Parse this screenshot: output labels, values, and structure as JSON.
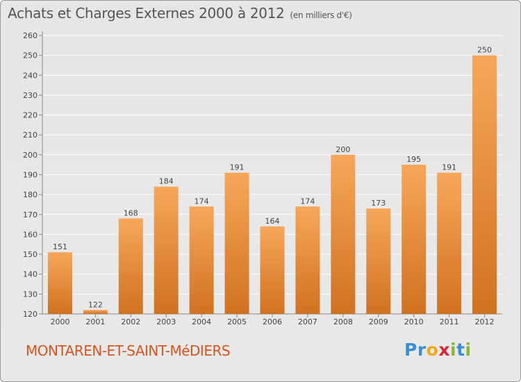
{
  "title": "Achats et Charges Externes 2000 à 2012",
  "subtitle": "(en milliers d'€)",
  "commune": "MONTAREN-ET-SAINT-MéDIERS",
  "logo": {
    "letters": [
      "P",
      "r",
      "o",
      "x",
      "i",
      "t",
      "i"
    ],
    "colors": [
      "#3a8fd6",
      "#3a8fd6",
      "#f2a81d",
      "#d9263b",
      "#8ab832",
      "#3a8fd6",
      "#8ab832"
    ]
  },
  "colors": {
    "bar_top": "#f7a75a",
    "bar_bottom": "#d07220",
    "grid": "#ffffff",
    "text": "#444444"
  },
  "chart_data": {
    "type": "bar",
    "title": "Achats et Charges Externes 2000 à 2012",
    "subtitle": "(en milliers d'€)",
    "categories": [
      "2000",
      "2001",
      "2002",
      "2003",
      "2004",
      "2005",
      "2006",
      "2007",
      "2008",
      "2009",
      "2010",
      "2011",
      "2012"
    ],
    "values": [
      151,
      122,
      168,
      184,
      174,
      191,
      164,
      174,
      200,
      173,
      195,
      191,
      250
    ],
    "ylim": [
      120,
      260
    ],
    "yticks": [
      120,
      130,
      140,
      150,
      160,
      170,
      180,
      190,
      200,
      210,
      220,
      230,
      240,
      250,
      260
    ],
    "grid": true,
    "xlabel": "",
    "ylabel": ""
  }
}
